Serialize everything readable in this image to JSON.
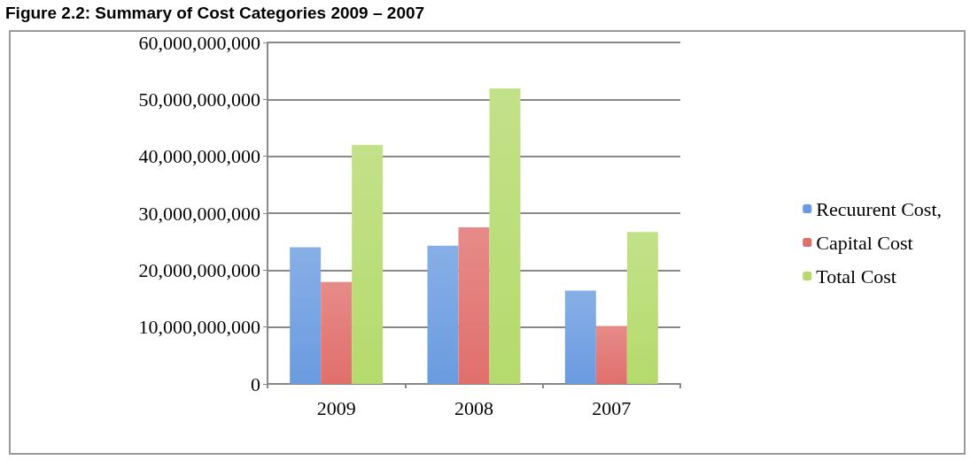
{
  "chart_data": {
    "type": "bar",
    "title": "Figure 2.2: Summary of Cost Categories 2009 – 2007",
    "categories": [
      "2009",
      "2008",
      "2007"
    ],
    "series": [
      {
        "name": "Recuurent Cost,",
        "color": "#6a9be0",
        "values": [
          24000000000,
          24300000000,
          16400000000
        ]
      },
      {
        "name": "Capital Cost",
        "color": "#e06f6c",
        "values": [
          17900000000,
          27500000000,
          10200000000
        ]
      },
      {
        "name": "Total Cost",
        "color": "#b5da6c",
        "values": [
          42000000000,
          51900000000,
          26700000000
        ]
      }
    ],
    "ylim": [
      0,
      60000000000
    ],
    "yticks": [
      0,
      {
        "value": 10000000000,
        "label": "10,000,000,000"
      },
      {
        "value": 20000000000,
        "label": "20,000,000,000"
      },
      {
        "value": 30000000000,
        "label": "30,000,000,000"
      },
      {
        "value": 40000000000,
        "label": "40,000,000,000"
      },
      {
        "value": 50000000000,
        "label": "50,000,000,000"
      },
      {
        "value": 60000000000,
        "label": "60,000,000,000"
      }
    ],
    "grid": "y",
    "legend": "right"
  }
}
